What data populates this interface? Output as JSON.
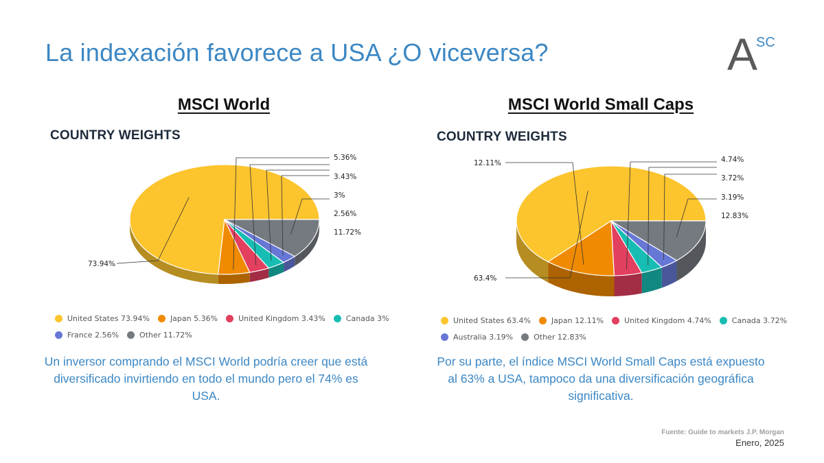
{
  "page": {
    "title": "La indexación favorece a USA ¿O viceversa?",
    "logo": {
      "letter": "A",
      "superscript": "SC"
    },
    "source": "Fuente: Guide to markets J.P. Morgan",
    "date": "Enero, 2025"
  },
  "panels": [
    {
      "title": "MSCI World",
      "chart_heading": "COUNTRY WEIGHTS",
      "legend": [
        "United States 73.94%",
        "Japan 5.36%",
        "United Kingdom 3.43%",
        "Canada 3%",
        "France 2.56%",
        "Other 11.72%"
      ],
      "description": "Un inversor comprando el MSCI World podría creer que está diversificado invirtiendo en todo el mundo pero el 74% es USA."
    },
    {
      "title": "MSCI World Small Caps",
      "chart_heading": "COUNTRY WEIGHTS",
      "legend": [
        "United States 63.4%",
        "Japan 12.11%",
        "United Kingdom 4.74%",
        "Canada 3.72%",
        "Australia 3.19%",
        "Other 12.83%"
      ],
      "description": "Por su parte, el índice MSCI World Small Caps está expuesto al 63% a USA, tampoco da una diversificación geográfica significativa."
    }
  ],
  "chart_data": [
    {
      "type": "pie",
      "title": "COUNTRY WEIGHTS",
      "categories": [
        "United States",
        "Japan",
        "United Kingdom",
        "Canada",
        "France",
        "Other"
      ],
      "values": [
        73.94,
        5.36,
        3.43,
        3,
        2.56,
        11.72
      ],
      "data_labels": [
        "73.94%",
        "5.36%",
        "3.43%",
        "3%",
        "2.56%",
        "11.72%"
      ],
      "colors": [
        "#fcc42d",
        "#f08a00",
        "#e33f5f",
        "#17bdb2",
        "#6777d6",
        "#757a80"
      ],
      "legend_position": "bottom",
      "style": "3d"
    },
    {
      "type": "pie",
      "title": "COUNTRY WEIGHTS",
      "categories": [
        "United States",
        "Japan",
        "United Kingdom",
        "Canada",
        "Australia",
        "Other"
      ],
      "values": [
        63.4,
        12.11,
        4.74,
        3.72,
        3.19,
        12.83
      ],
      "data_labels": [
        "63.4%",
        "12.11%",
        "4.74%",
        "3.72%",
        "3.19%",
        "12.83%"
      ],
      "colors": [
        "#fcc42d",
        "#f08a00",
        "#e33f5f",
        "#17bdb2",
        "#6777d6",
        "#757a80"
      ],
      "legend_position": "bottom",
      "style": "3d"
    }
  ]
}
